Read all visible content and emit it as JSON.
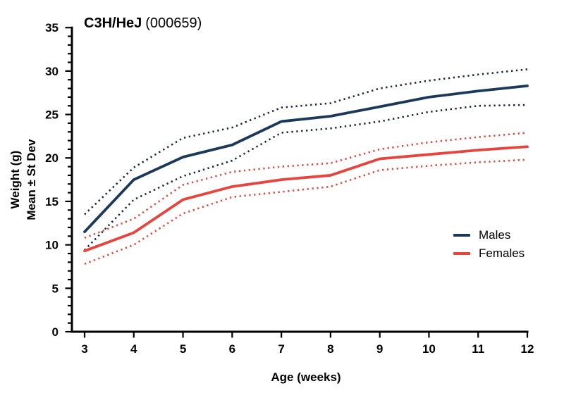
{
  "title": {
    "strain": "C3H/HeJ",
    "stock_number": "(000659)"
  },
  "y_axis": {
    "label_line1": "Weight (g)",
    "label_line2": "Mean ± St Dev",
    "major_ticks": [
      0,
      5,
      10,
      15,
      20,
      25,
      30,
      35
    ],
    "minor_step": 1,
    "range": [
      0,
      35
    ]
  },
  "x_axis": {
    "label": "Age (weeks)",
    "ticks": [
      3,
      4,
      5,
      6,
      7,
      8,
      9,
      10,
      11,
      12
    ],
    "range": [
      3,
      12
    ]
  },
  "legend": {
    "items": [
      {
        "label": "Males",
        "color": "#1b3a59"
      },
      {
        "label": "Females",
        "color": "#e8433c"
      }
    ]
  },
  "colors": {
    "male_solid": "#1b3a59",
    "male_dotted": "#17253e",
    "female_solid": "#e8433c",
    "female_dotted": "#de4a42",
    "axis": "#000000",
    "background": "#ffffff"
  },
  "chart_data": {
    "type": "line",
    "title": "C3H/HeJ (000659)",
    "xlabel": "Age (weeks)",
    "ylabel": "Weight (g) Mean ± St Dev",
    "xlim": [
      3,
      12
    ],
    "ylim": [
      0,
      35
    ],
    "grid": false,
    "legend_position": "right-middle",
    "x": [
      3,
      4,
      5,
      6,
      7,
      8,
      9,
      10,
      11,
      12
    ],
    "series": [
      {
        "name": "Males mean",
        "group": "Males",
        "style": "solid",
        "color": "#1b3a59",
        "values": [
          11.5,
          17.5,
          20.1,
          21.5,
          24.2,
          24.8,
          25.9,
          27.0,
          27.7,
          28.3
        ]
      },
      {
        "name": "Males +1 StDev",
        "group": "Males",
        "style": "dotted",
        "color": "#17253e",
        "values": [
          13.5,
          18.9,
          22.3,
          23.5,
          25.8,
          26.3,
          28.0,
          28.9,
          29.6,
          30.2
        ]
      },
      {
        "name": "Males -1 StDev",
        "group": "Males",
        "style": "dotted",
        "color": "#17253e",
        "values": [
          9.4,
          15.2,
          17.9,
          19.7,
          22.9,
          23.4,
          24.2,
          25.3,
          26.0,
          26.1
        ]
      },
      {
        "name": "Females mean",
        "group": "Females",
        "style": "solid",
        "color": "#e8433c",
        "values": [
          9.3,
          11.4,
          15.2,
          16.7,
          17.5,
          18.0,
          19.9,
          20.4,
          20.9,
          21.3
        ]
      },
      {
        "name": "Females +1 StDev",
        "group": "Females",
        "style": "dotted",
        "color": "#de4a42",
        "values": [
          10.8,
          13.0,
          16.9,
          18.4,
          19.0,
          19.4,
          21.0,
          21.8,
          22.4,
          22.9
        ]
      },
      {
        "name": "Females -1 StDev",
        "group": "Females",
        "style": "dotted",
        "color": "#de4a42",
        "values": [
          7.8,
          10.0,
          13.6,
          15.5,
          16.1,
          16.7,
          18.6,
          19.1,
          19.5,
          19.8
        ]
      }
    ]
  }
}
